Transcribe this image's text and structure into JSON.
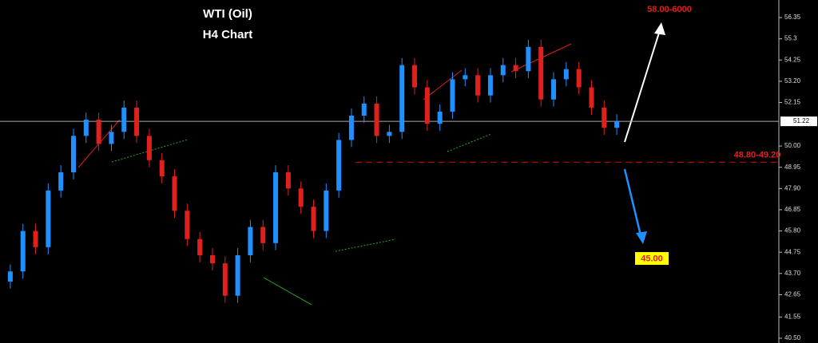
{
  "chart_data": {
    "type": "candlestick",
    "title": "WTI (Oil)",
    "subtitle": "H4 Chart",
    "up_color": "#1e90ff",
    "down_color": "#e0201c",
    "open": [
      43.3,
      43.8,
      45.8,
      45.0,
      47.8,
      48.7,
      50.5,
      51.3,
      50.1,
      50.7,
      51.9,
      50.5,
      49.3,
      48.5,
      46.8,
      45.4,
      44.6,
      44.2,
      42.6,
      44.6,
      46.0,
      45.2,
      48.7,
      47.9,
      47.0,
      45.8,
      47.8,
      50.3,
      51.5,
      52.1,
      50.5,
      50.7,
      54.0,
      52.9,
      51.1,
      51.7,
      53.3,
      53.5,
      52.5,
      53.5,
      54.0,
      53.7,
      54.9,
      52.3,
      53.3,
      53.8,
      52.9,
      51.9,
      50.9
    ],
    "high": [
      44.15,
      46.15,
      46.15,
      48.15,
      49.05,
      50.85,
      51.65,
      51.65,
      51.05,
      52.25,
      52.25,
      50.85,
      49.65,
      48.85,
      47.15,
      45.75,
      44.95,
      44.55,
      44.95,
      46.35,
      46.35,
      49.05,
      49.05,
      48.25,
      47.35,
      48.15,
      50.65,
      51.85,
      52.45,
      52.45,
      51.05,
      54.35,
      54.35,
      53.25,
      52.05,
      53.65,
      53.85,
      53.85,
      53.85,
      54.35,
      54.35,
      55.25,
      55.25,
      53.65,
      54.15,
      54.15,
      53.25,
      52.25,
      51.57
    ],
    "low": [
      42.95,
      43.45,
      44.65,
      44.65,
      47.45,
      48.35,
      50.15,
      49.75,
      49.75,
      50.35,
      50.15,
      48.95,
      48.15,
      46.45,
      45.05,
      44.25,
      43.85,
      42.25,
      42.25,
      44.25,
      44.85,
      44.85,
      47.55,
      46.65,
      45.45,
      45.45,
      47.45,
      49.95,
      51.15,
      50.15,
      50.15,
      50.35,
      52.55,
      50.75,
      50.75,
      51.35,
      52.95,
      52.15,
      52.15,
      53.15,
      53.35,
      53.35,
      51.95,
      51.95,
      52.95,
      52.55,
      51.55,
      50.55,
      50.55
    ],
    "close": [
      43.8,
      45.8,
      45.0,
      47.8,
      48.7,
      50.5,
      51.3,
      50.1,
      50.7,
      51.9,
      50.5,
      49.3,
      48.5,
      46.8,
      45.4,
      44.6,
      44.2,
      42.6,
      44.6,
      46.0,
      45.2,
      48.7,
      47.9,
      47.0,
      45.8,
      47.8,
      50.3,
      51.5,
      52.1,
      50.5,
      50.7,
      54.0,
      52.9,
      51.1,
      51.7,
      53.3,
      53.5,
      52.5,
      53.5,
      54.0,
      53.7,
      54.9,
      52.3,
      53.3,
      53.8,
      52.9,
      51.9,
      50.9,
      51.22
    ],
    "current_price": 51.22,
    "level": {
      "value": 49.2,
      "label": "48.80-49.20"
    },
    "target_up": "58.00-6000",
    "target_down": "45.00",
    "ylim": [
      40.5,
      56.35
    ],
    "yticks": [
      56.35,
      55.3,
      54.25,
      {
        "value": 53.2,
        "label": "53.20"
      },
      52.15,
      {
        "value": 50,
        "label": "50.00"
      },
      48.95,
      {
        "value": 47.9,
        "label": "47.90"
      },
      46.85,
      {
        "value": 45.8,
        "label": "45.80"
      },
      44.75,
      {
        "value": 43.7,
        "label": "43.70"
      },
      42.65,
      41.55,
      {
        "value": 40.5,
        "label": "40.50"
      }
    ]
  }
}
